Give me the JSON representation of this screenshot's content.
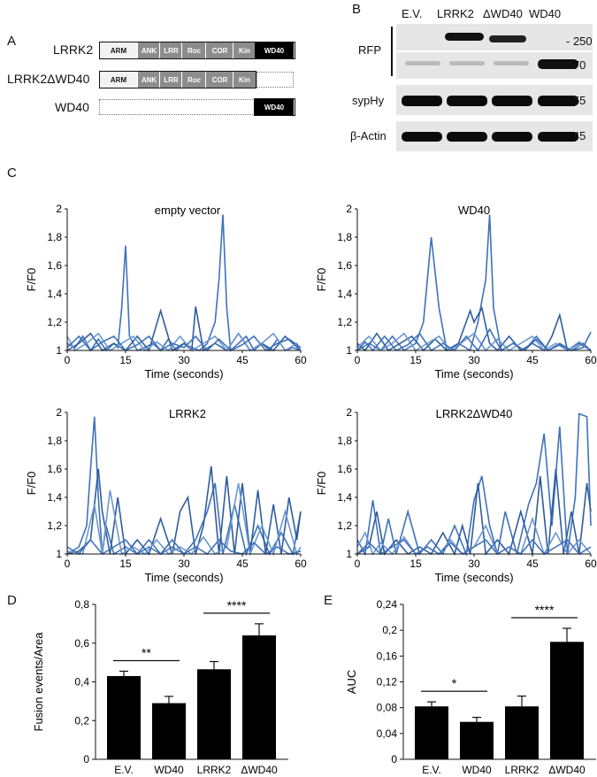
{
  "panel_a": {
    "letter": "A",
    "constructs": [
      {
        "name": "LRRK2",
        "domains": [
          "ARM",
          "ANK",
          "LRR",
          "Roc",
          "COR",
          "Kin",
          "WD40"
        ]
      },
      {
        "name": "LRRK2ΔWD40",
        "domains": [
          "ARM",
          "ANK",
          "LRR",
          "Roc",
          "COR",
          "Kin"
        ]
      },
      {
        "name": "WD40",
        "domains": [
          "WD40"
        ]
      }
    ]
  },
  "panel_b": {
    "letter": "B",
    "lanes": [
      "E.V.",
      "LRRK2",
      "ΔWD40",
      "WD40"
    ],
    "rows": [
      {
        "label": "RFP",
        "mw": "- 250"
      },
      {
        "label": "",
        "mw": "- 70"
      },
      {
        "label": "sypHy",
        "mw": "- 55"
      },
      {
        "label": "β-Actin",
        "mw": "- 45"
      }
    ]
  },
  "panel_c": {
    "letter": "C",
    "ylabel": "F/F0",
    "xlabel": "Time (seconds)",
    "yticks": [
      "1",
      "1,2",
      "1,4",
      "1,6",
      "1,8",
      "2"
    ],
    "xticks": [
      "0",
      "15",
      "30",
      "45",
      "60"
    ]
  },
  "panel_d": {
    "letter": "D"
  },
  "panel_e": {
    "letter": "E"
  },
  "colors": {
    "trace_dark": "#2f5d9e",
    "trace_mid": "#3f72bb",
    "trace_light": "#6d98d2",
    "bar": "#000000"
  },
  "chart_data": [
    {
      "type": "line",
      "title": "empty vector",
      "xlabel": "Time (seconds)",
      "ylabel": "F/F0",
      "xlim": [
        0,
        60
      ],
      "ylim": [
        1,
        2
      ],
      "series": [
        {
          "x": [
            0,
            2,
            4,
            6,
            8,
            10,
            12,
            13,
            14,
            15,
            16,
            18,
            20,
            22,
            24,
            26,
            28,
            30,
            32,
            34,
            36,
            38,
            39,
            40,
            41,
            42,
            44,
            46,
            48,
            50,
            52,
            54,
            56,
            58,
            60
          ],
          "y": [
            1.05,
            1.02,
            1.1,
            1.0,
            1.08,
            1.0,
            1.05,
            1.02,
            1.3,
            1.74,
            1.1,
            1.0,
            1.02,
            1.05,
            1.0,
            1.08,
            1.0,
            1.05,
            1.02,
            1.0,
            1.05,
            1.2,
            1.5,
            1.96,
            1.3,
            1.0,
            1.05,
            1.1,
            1.0,
            1.05,
            1.0,
            1.08,
            1.0,
            1.02,
            1.0
          ]
        },
        {
          "x": [
            0,
            3,
            6,
            9,
            12,
            15,
            18,
            21,
            24,
            27,
            30,
            32,
            33,
            35,
            38,
            41,
            44,
            47,
            50,
            53,
            56,
            60
          ],
          "y": [
            1.0,
            1.05,
            1.12,
            1.0,
            1.05,
            1.0,
            1.1,
            1.0,
            1.28,
            1.0,
            1.05,
            1.0,
            1.31,
            1.0,
            1.05,
            1.0,
            1.12,
            1.0,
            1.05,
            1.0,
            1.1,
            1.0
          ]
        },
        {
          "x": [
            0,
            2,
            5,
            8,
            11,
            14,
            17,
            20,
            23,
            26,
            29,
            32,
            35,
            38,
            41,
            44,
            47,
            50,
            53,
            56,
            59,
            60
          ],
          "y": [
            1.1,
            1.0,
            1.05,
            1.12,
            1.0,
            1.05,
            1.1,
            1.0,
            1.06,
            1.0,
            1.1,
            1.0,
            1.05,
            1.1,
            1.0,
            1.12,
            1.0,
            1.05,
            1.12,
            1.0,
            1.05,
            1.0
          ]
        },
        {
          "x": [
            0,
            3,
            6,
            9,
            12,
            15,
            18,
            21,
            24,
            27,
            30,
            33,
            36,
            39,
            42,
            45,
            48,
            51,
            54,
            57,
            60
          ],
          "y": [
            1.02,
            1.1,
            1.0,
            1.06,
            1.1,
            1.0,
            1.04,
            1.1,
            1.0,
            1.05,
            1.02,
            1.1,
            1.0,
            1.08,
            1.0,
            1.04,
            1.1,
            1.0,
            1.05,
            1.08,
            1.02
          ]
        }
      ]
    },
    {
      "type": "line",
      "title": "WD40",
      "xlabel": "Time (seconds)",
      "ylabel": "F/F0",
      "xlim": [
        0,
        60
      ],
      "ylim": [
        1,
        2
      ],
      "series": [
        {
          "x": [
            0,
            3,
            6,
            9,
            12,
            15,
            17,
            19,
            21,
            23,
            26,
            29,
            31,
            33,
            34,
            35,
            37,
            40,
            43,
            46,
            49,
            52,
            55,
            58,
            60
          ],
          "y": [
            1.0,
            1.05,
            1.0,
            1.1,
            1.0,
            1.05,
            1.2,
            1.8,
            1.3,
            1.0,
            1.05,
            1.0,
            1.2,
            1.5,
            1.96,
            1.3,
            1.0,
            1.05,
            1.0,
            1.1,
            1.0,
            1.05,
            1.0,
            1.02,
            1.13
          ]
        },
        {
          "x": [
            0,
            2,
            5,
            8,
            11,
            14,
            17,
            20,
            23,
            26,
            29,
            30,
            32,
            34,
            36,
            39,
            42,
            45,
            48,
            50,
            52,
            54,
            57,
            60
          ],
          "y": [
            1.05,
            1.0,
            1.12,
            1.0,
            1.05,
            1.1,
            1.0,
            1.08,
            1.0,
            1.05,
            1.28,
            1.2,
            1.3,
            1.05,
            1.0,
            1.1,
            1.0,
            1.05,
            1.0,
            1.1,
            1.25,
            1.0,
            1.05,
            1.0
          ]
        },
        {
          "x": [
            0,
            3,
            6,
            9,
            12,
            15,
            18,
            21,
            24,
            27,
            30,
            33,
            36,
            39,
            42,
            45,
            48,
            51,
            54,
            57,
            60
          ],
          "y": [
            1.02,
            1.1,
            1.0,
            1.05,
            1.12,
            1.0,
            1.05,
            1.1,
            1.0,
            1.06,
            1.12,
            1.0,
            1.08,
            1.0,
            1.05,
            1.1,
            1.0,
            1.05,
            1.0,
            1.06,
            1.0
          ]
        },
        {
          "x": [
            0,
            2,
            4,
            7,
            10,
            13,
            16,
            19,
            22,
            25,
            28,
            31,
            34,
            37,
            40,
            43,
            46,
            49,
            52,
            55,
            58,
            60
          ],
          "y": [
            1.0,
            1.06,
            1.0,
            1.1,
            1.0,
            1.04,
            1.12,
            1.0,
            1.05,
            1.0,
            1.1,
            1.0,
            1.15,
            1.0,
            1.05,
            1.0,
            1.08,
            1.0,
            1.04,
            1.0,
            1.05,
            1.0
          ]
        }
      ]
    },
    {
      "type": "line",
      "title": "LRRK2",
      "xlabel": "Time (seconds)",
      "ylabel": "F/F0",
      "xlim": [
        0,
        60
      ],
      "ylim": [
        1,
        2
      ],
      "series": [
        {
          "x": [
            0,
            3,
            5,
            6,
            7,
            8,
            9,
            10,
            12,
            15,
            18,
            21,
            24,
            27,
            30,
            33,
            36,
            38,
            40,
            43,
            46,
            49,
            52,
            55,
            58,
            60
          ],
          "y": [
            1.0,
            1.05,
            1.2,
            1.6,
            1.97,
            1.4,
            1.0,
            1.2,
            1.0,
            1.05,
            1.0,
            1.1,
            1.0,
            1.05,
            1.0,
            1.1,
            1.3,
            1.5,
            1.0,
            1.35,
            1.0,
            1.2,
            1.0,
            1.15,
            1.0,
            1.3
          ]
        },
        {
          "x": [
            0,
            3,
            6,
            8,
            9,
            11,
            13,
            15,
            18,
            21,
            24,
            27,
            29,
            31,
            33,
            35,
            37,
            39,
            41,
            43,
            45,
            47,
            49,
            51,
            53,
            55,
            57,
            59,
            60
          ],
          "y": [
            1.0,
            1.02,
            1.1,
            1.6,
            1.3,
            1.0,
            1.4,
            1.0,
            1.1,
            1.0,
            1.25,
            1.0,
            1.3,
            1.4,
            1.0,
            1.2,
            1.62,
            1.0,
            1.55,
            1.0,
            1.5,
            1.0,
            1.45,
            1.0,
            1.35,
            1.0,
            1.4,
            1.1,
            1.3
          ]
        },
        {
          "x": [
            0,
            4,
            7,
            9,
            11,
            14,
            17,
            20,
            23,
            26,
            29,
            32,
            35,
            38,
            41,
            44,
            47,
            50,
            53,
            56,
            59,
            60
          ],
          "y": [
            1.02,
            1.0,
            1.35,
            1.0,
            1.45,
            1.0,
            1.05,
            1.0,
            1.1,
            1.0,
            1.05,
            1.0,
            1.12,
            1.0,
            1.05,
            1.5,
            1.0,
            1.2,
            1.0,
            1.3,
            1.0,
            1.05
          ]
        },
        {
          "x": [
            0,
            3,
            6,
            9,
            12,
            15,
            18,
            21,
            24,
            27,
            30,
            33,
            36,
            39,
            42,
            45,
            48,
            51,
            54,
            57,
            60
          ],
          "y": [
            1.05,
            1.0,
            1.1,
            1.0,
            1.05,
            1.1,
            1.0,
            1.05,
            1.0,
            1.1,
            1.0,
            1.05,
            1.0,
            1.1,
            1.02,
            1.0,
            1.08,
            1.0,
            1.05,
            1.0,
            1.02
          ]
        }
      ]
    },
    {
      "type": "line",
      "title": "LRRK2ΔWD40",
      "xlabel": "Time (seconds)",
      "ylabel": "F/F0",
      "xlim": [
        0,
        60
      ],
      "ylim": [
        1,
        2
      ],
      "series": [
        {
          "x": [
            0,
            2,
            4,
            6,
            8,
            10,
            13,
            16,
            19,
            22,
            25,
            28,
            30,
            32,
            34,
            36,
            38,
            41,
            44,
            46,
            48,
            50,
            52,
            54,
            56,
            57,
            59,
            60
          ],
          "y": [
            1.1,
            1.0,
            1.38,
            1.0,
            1.25,
            1.0,
            1.3,
            1.0,
            1.1,
            1.0,
            1.2,
            1.0,
            1.38,
            1.55,
            1.2,
            1.0,
            1.3,
            1.0,
            1.35,
            1.5,
            1.85,
            1.2,
            1.9,
            1.0,
            1.4,
            1.99,
            1.97,
            1.2
          ]
        },
        {
          "x": [
            0,
            3,
            5,
            7,
            10,
            13,
            16,
            19,
            22,
            25,
            27,
            29,
            31,
            33,
            36,
            39,
            42,
            45,
            47,
            49,
            51,
            53,
            55,
            57,
            59,
            60
          ],
          "y": [
            1.0,
            1.05,
            1.3,
            1.0,
            1.1,
            1.0,
            1.05,
            1.0,
            1.15,
            1.0,
            1.2,
            1.0,
            1.5,
            1.0,
            1.1,
            1.0,
            1.3,
            1.0,
            1.55,
            1.0,
            1.6,
            1.0,
            1.3,
            1.0,
            1.5,
            1.3
          ]
        },
        {
          "x": [
            0,
            2,
            4,
            6,
            9,
            12,
            15,
            18,
            21,
            24,
            27,
            30,
            33,
            36,
            39,
            42,
            45,
            48,
            51,
            54,
            57,
            60
          ],
          "y": [
            1.05,
            1.15,
            1.0,
            1.08,
            1.0,
            1.12,
            1.0,
            1.05,
            1.0,
            1.1,
            1.0,
            1.05,
            1.2,
            1.0,
            1.05,
            1.0,
            1.25,
            1.0,
            1.15,
            1.0,
            1.1,
            1.0
          ]
        },
        {
          "x": [
            0,
            3,
            6,
            9,
            12,
            15,
            18,
            21,
            24,
            27,
            30,
            33,
            36,
            39,
            42,
            45,
            48,
            51,
            54,
            57,
            60
          ],
          "y": [
            1.0,
            1.08,
            1.0,
            1.05,
            1.1,
            1.0,
            1.05,
            1.0,
            1.08,
            1.0,
            1.05,
            1.1,
            1.0,
            1.05,
            1.0,
            1.1,
            1.0,
            1.05,
            1.1,
            1.0,
            1.05
          ]
        }
      ]
    },
    {
      "type": "bar",
      "ylabel": "Fusion events/Area",
      "categories": [
        "E.V.",
        "WD40",
        "LRRK2",
        "ΔWD40"
      ],
      "values": [
        0.43,
        0.29,
        0.465,
        0.64
      ],
      "errors": [
        0.025,
        0.035,
        0.04,
        0.06
      ],
      "ylim": [
        0,
        0.8
      ],
      "yticks": [
        "0",
        "0,2",
        "0,4",
        "0,6",
        "0,8"
      ],
      "significance": [
        {
          "from": "E.V.",
          "to": "WD40",
          "label": "**"
        },
        {
          "from": "LRRK2",
          "to": "ΔWD40",
          "label": "****"
        }
      ]
    },
    {
      "type": "bar",
      "ylabel": "AUC",
      "categories": [
        "E.V.",
        "WD40",
        "LRRK2",
        "ΔWD40"
      ],
      "values": [
        0.082,
        0.058,
        0.082,
        0.182
      ],
      "errors": [
        0.007,
        0.007,
        0.016,
        0.021
      ],
      "ylim": [
        0,
        0.24
      ],
      "yticks": [
        "0",
        "0,04",
        "0,08",
        "0,12",
        "0,16",
        "0,2",
        "0,24"
      ],
      "significance": [
        {
          "from": "E.V.",
          "to": "WD40",
          "label": "*"
        },
        {
          "from": "LRRK2",
          "to": "ΔWD40",
          "label": "****"
        }
      ]
    }
  ]
}
